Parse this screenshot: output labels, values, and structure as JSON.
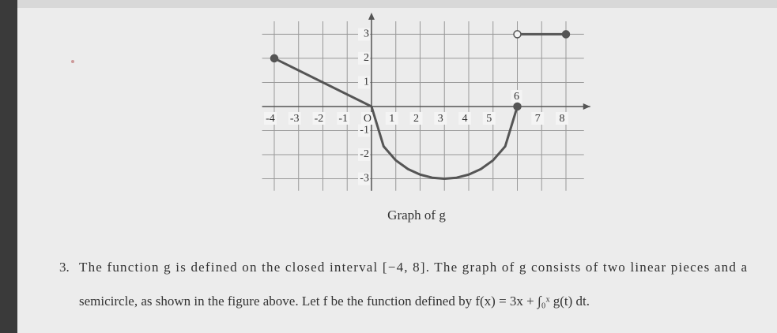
{
  "chart_data": {
    "type": "line",
    "caption": "Graph of g",
    "x": [
      -4,
      0,
      0.5,
      1,
      1.5,
      2,
      2.5,
      3,
      3.5,
      4,
      4.5,
      5,
      5.5,
      6,
      6,
      6,
      8
    ],
    "values": [
      2,
      0,
      -1.658,
      -2.236,
      -2.598,
      -2.828,
      -2.958,
      -3,
      -2.958,
      -2.828,
      -2.598,
      -2.236,
      -1.658,
      0,
      null,
      3,
      3
    ],
    "color": "#555555",
    "xlim": [
      -4.5,
      9
    ],
    "ylim": [
      -3.5,
      3.8
    ],
    "xticks": [
      -4,
      -3,
      -2,
      -1,
      {
        "value": 0,
        "label": "O"
      },
      1,
      2,
      3,
      4,
      5,
      6,
      7,
      8
    ],
    "yticks": [
      -3,
      -2,
      -1,
      1,
      2,
      3
    ],
    "grid": true
  },
  "problem": {
    "number": "3.",
    "line1": "The function g is defined on the closed interval [−4, 8]. The graph of g consists of two linear pieces and a",
    "line2": "semicircle, as shown in the figure above. Let f be the function defined by f(x) = 3x + ∫₀ˣ g(t) dt."
  }
}
